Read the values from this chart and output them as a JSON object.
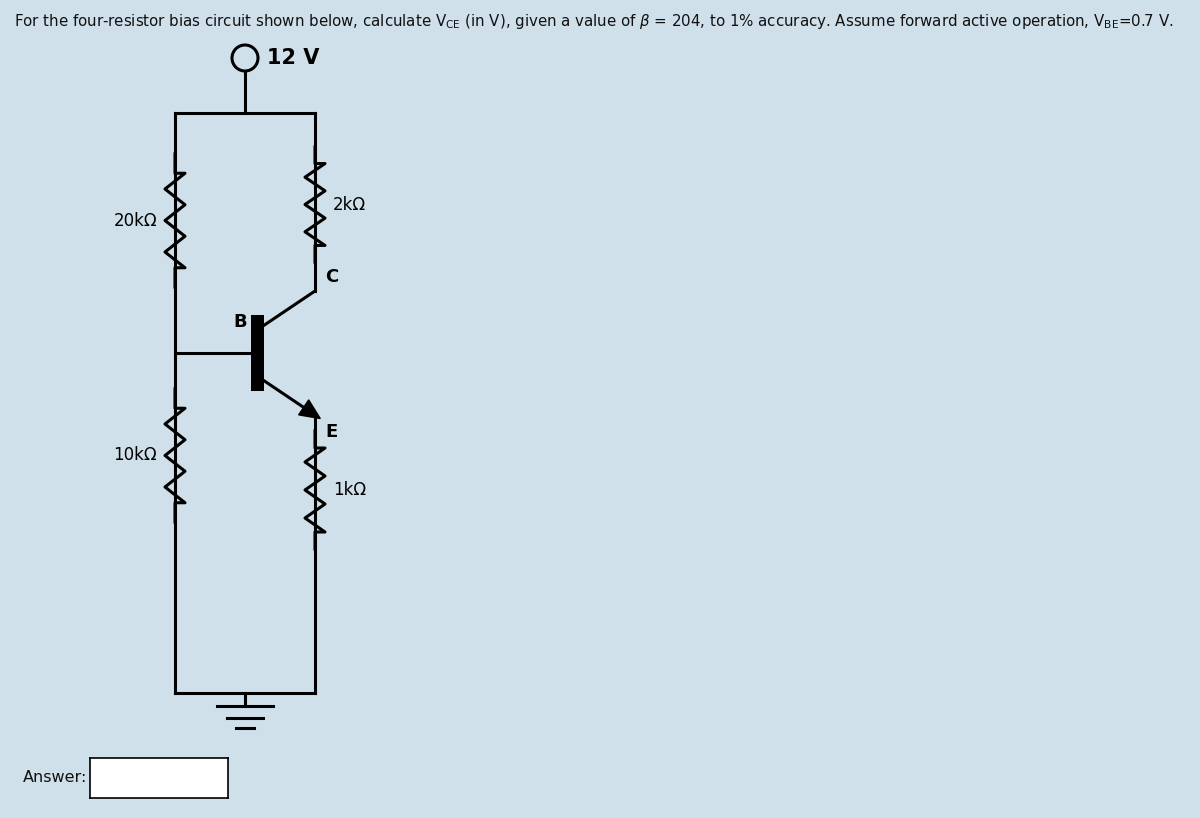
{
  "bg_color": "#cfe0ea",
  "vcc_label": "12 V",
  "r1_label": "20kΩ",
  "r2_label": "10kΩ",
  "rc_label": "2kΩ",
  "re_label": "1kΩ",
  "b_label": "B",
  "c_label": "C",
  "e_label": "E",
  "answer_label": "Answer:",
  "title": "For the four-resistor bias circuit shown below, calculate V$_{\\rm CE}$ (in V), given a value of $\\beta$ = 204, to 1% accuracy. Assume forward active operation, V$_{\\rm BE}$=0.7 V.",
  "line_color": "#000000",
  "lw": 2.2,
  "fig_w": 12.0,
  "fig_h": 8.18
}
